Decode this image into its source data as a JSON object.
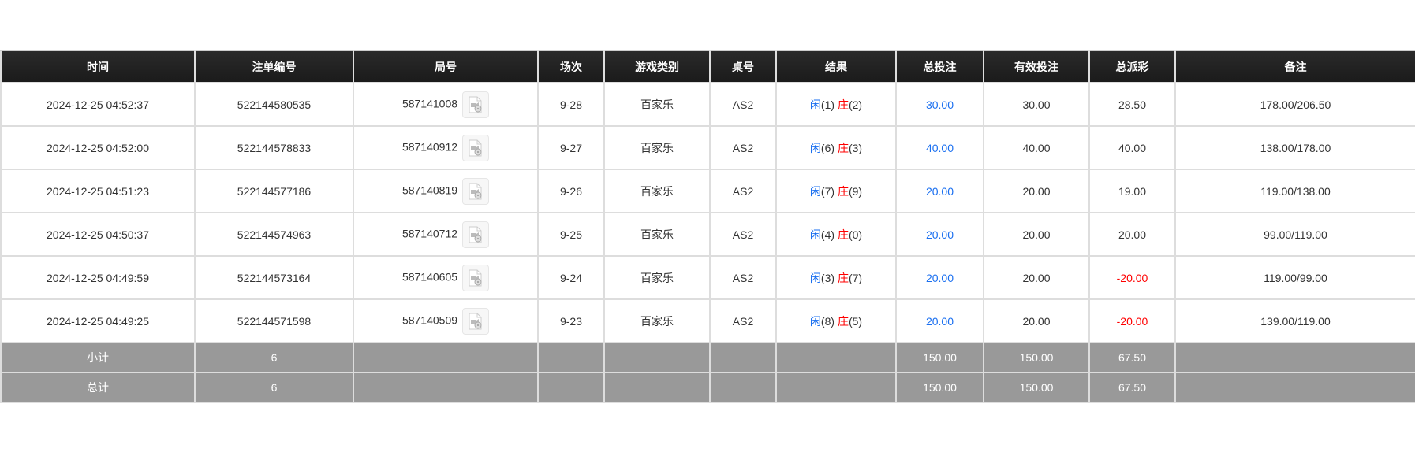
{
  "headers": [
    "时间",
    "注单编号",
    "局号",
    "场次",
    "游戏类别",
    "桌号",
    "结果",
    "总投注",
    "有效投注",
    "总派彩",
    "备注"
  ],
  "rows": [
    {
      "time": "2024-12-25 04:52:37",
      "bet_id": "522144580535",
      "round": "587141008",
      "shoe": "9-28",
      "game": "百家乐",
      "table": "AS2",
      "player": "闲",
      "player_score": "(1)",
      "banker": "庄",
      "banker_score": "(2)",
      "total_bet": "30.00",
      "valid_bet": "30.00",
      "payout": "28.50",
      "payout_negative": false,
      "note": "178.00/206.50"
    },
    {
      "time": "2024-12-25 04:52:00",
      "bet_id": "522144578833",
      "round": "587140912",
      "shoe": "9-27",
      "game": "百家乐",
      "table": "AS2",
      "player": "闲",
      "player_score": "(6)",
      "banker": "庄",
      "banker_score": "(3)",
      "total_bet": "40.00",
      "valid_bet": "40.00",
      "payout": "40.00",
      "payout_negative": false,
      "note": "138.00/178.00"
    },
    {
      "time": "2024-12-25 04:51:23",
      "bet_id": "522144577186",
      "round": "587140819",
      "shoe": "9-26",
      "game": "百家乐",
      "table": "AS2",
      "player": "闲",
      "player_score": "(7)",
      "banker": "庄",
      "banker_score": "(9)",
      "total_bet": "20.00",
      "valid_bet": "20.00",
      "payout": "19.00",
      "payout_negative": false,
      "note": "119.00/138.00"
    },
    {
      "time": "2024-12-25 04:50:37",
      "bet_id": "522144574963",
      "round": "587140712",
      "shoe": "9-25",
      "game": "百家乐",
      "table": "AS2",
      "player": "闲",
      "player_score": "(4)",
      "banker": "庄",
      "banker_score": "(0)",
      "total_bet": "20.00",
      "valid_bet": "20.00",
      "payout": "20.00",
      "payout_negative": false,
      "note": "99.00/119.00"
    },
    {
      "time": "2024-12-25 04:49:59",
      "bet_id": "522144573164",
      "round": "587140605",
      "shoe": "9-24",
      "game": "百家乐",
      "table": "AS2",
      "player": "闲",
      "player_score": "(3)",
      "banker": "庄",
      "banker_score": "(7)",
      "total_bet": "20.00",
      "valid_bet": "20.00",
      "payout": "-20.00",
      "payout_negative": true,
      "note": "119.00/99.00"
    },
    {
      "time": "2024-12-25 04:49:25",
      "bet_id": "522144571598",
      "round": "587140509",
      "shoe": "9-23",
      "game": "百家乐",
      "table": "AS2",
      "player": "闲",
      "player_score": "(8)",
      "banker": "庄",
      "banker_score": "(5)",
      "total_bet": "20.00",
      "valid_bet": "20.00",
      "payout": "-20.00",
      "payout_negative": true,
      "note": "139.00/119.00"
    }
  ],
  "subtotal": {
    "label": "小计",
    "count": "6",
    "total_bet": "150.00",
    "valid_bet": "150.00",
    "payout": "67.50"
  },
  "total": {
    "label": "总计",
    "count": "6",
    "total_bet": "150.00",
    "valid_bet": "150.00",
    "payout": "67.50"
  },
  "colors": {
    "header_bg": "#1b1b1b",
    "sum_bg": "#999999",
    "player": "#1a6ff0",
    "banker": "#ff0000",
    "negative": "#ff0000"
  },
  "icons": {
    "replay": "video-file-icon"
  }
}
